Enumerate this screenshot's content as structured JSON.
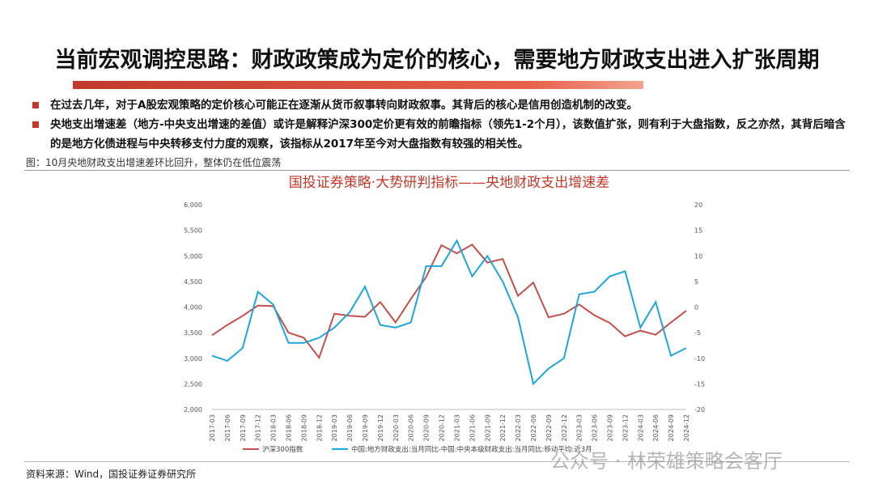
{
  "header": {
    "title": "当前宏观调控思路：财政政策成为定价的核心，需要地方财政支出进入扩张周期"
  },
  "bullets": [
    "在过去几年，对于A股宏观策略的定价核心可能正在逐渐从货币叙事转向财政叙事。其背后的核心是信用创造机制的改变。",
    "央地支出增速差（地方-中央支出增速的差值）或许是解释沪深300定价更有效的前瞻指标（领先1-2个月），该数值扩张，则有利于大盘指数，反之亦然，其背后暗含的是地方化债进程与中央转移支付力度的观察，该指标从2017年至今对大盘指数有较强的相关性。"
  ],
  "caption": "图：10月央地财政支出增速差环比回升，整体仍在低位震荡",
  "chart_data": {
    "type": "line",
    "title": "国投证券策略·大势研判指标——央地财政支出增速差",
    "categories": [
      "2017-03",
      "2017-06",
      "2017-09",
      "2017-12",
      "2018-03",
      "2018-06",
      "2018-09",
      "2018-12",
      "2019-03",
      "2019-06",
      "2019-09",
      "2019-12",
      "2020-03",
      "2020-06",
      "2020-09",
      "2020-12",
      "2021-03",
      "2021-06",
      "2021-09",
      "2021-12",
      "2022-03",
      "2022-06",
      "2022-09",
      "2022-12",
      "2023-03",
      "2023-06",
      "2023-09",
      "2023-12",
      "2024-03",
      "2024-06",
      "2024-09",
      "2024-12"
    ],
    "series": [
      {
        "name": "沪深300指数",
        "color": "#c0504d",
        "values": [
          3450,
          3650,
          3830,
          4030,
          4020,
          3500,
          3400,
          3010,
          3870,
          3830,
          3810,
          4100,
          3700,
          4160,
          4590,
          5210,
          5050,
          5220,
          4870,
          4940,
          4220,
          4480,
          3800,
          3870,
          4050,
          3840,
          3690,
          3430,
          3540,
          3460,
          3700,
          3930
        ]
      },
      {
        "name": "中国:地方财政支出:当月同比-中国:中央本级财政支出:当月同比:移动平均:近3月",
        "color": "#1fa5d8",
        "axis": "y2",
        "values": [
          -9.5,
          -10.5,
          -8,
          3,
          0.5,
          -7,
          -7,
          -6,
          -4,
          -1,
          4,
          -3.5,
          -4,
          -3,
          8,
          8,
          13,
          6,
          10,
          5,
          -2,
          -15,
          -12,
          -10,
          2.5,
          3,
          6,
          7,
          -4,
          1,
          -9.5,
          -8
        ]
      }
    ],
    "ylim": [
      2000,
      6000
    ],
    "yticks": [
      {
        "value": 2000,
        "label": "2,000"
      },
      {
        "value": 2500,
        "label": "2,500"
      },
      {
        "value": 3000,
        "label": "3,000"
      },
      {
        "value": 3500,
        "label": "3,500"
      },
      {
        "value": 4000,
        "label": "4,000"
      },
      {
        "value": 4500,
        "label": "4,500"
      },
      {
        "value": 5000,
        "label": "5,000"
      },
      {
        "value": 5500,
        "label": "5,500"
      },
      {
        "value": 6000,
        "label": "6,000"
      }
    ],
    "y2lim": [
      -20,
      20
    ],
    "y2ticks": [
      -20,
      -15,
      -10,
      -5,
      0,
      5,
      10,
      15,
      20
    ],
    "grid": false,
    "legend": "bottom"
  },
  "source": "资料来源：Wind，国投证券证券研究所",
  "watermark": "公众号 · 林荣雄策略会客厅"
}
